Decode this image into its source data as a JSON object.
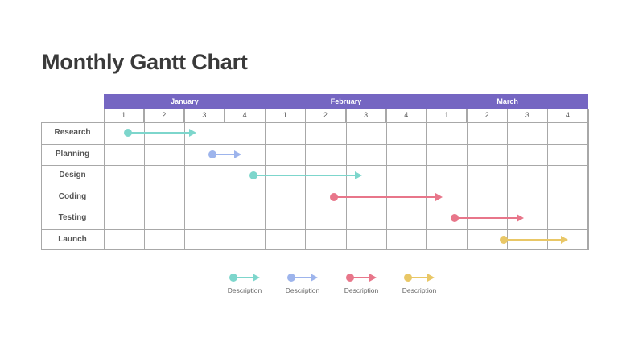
{
  "title": "Monthly Gantt Chart",
  "months": [
    "January",
    "February",
    "March"
  ],
  "weeks": [
    "1",
    "2",
    "3",
    "4",
    "1",
    "2",
    "3",
    "4",
    "1",
    "2",
    "3",
    "4"
  ],
  "tasks": [
    "Research",
    "Planning",
    "Design",
    "Coding",
    "Testing",
    "Launch"
  ],
  "colors": {
    "header": "#7566c2",
    "teal": "#7dd6cc",
    "blue": "#9db4ec",
    "red": "#e8768a",
    "yellow": "#e9c766"
  },
  "legend": [
    {
      "label": "Description",
      "color": "#7dd6cc"
    },
    {
      "label": "Description",
      "color": "#9db4ec"
    },
    {
      "label": "Description",
      "color": "#e8768a"
    },
    {
      "label": "Description",
      "color": "#e9c766"
    }
  ],
  "chart_data": {
    "type": "gantt",
    "title": "Monthly Gantt Chart",
    "categories": [
      "Research",
      "Planning",
      "Design",
      "Coding",
      "Testing",
      "Launch"
    ],
    "x_ticks": [
      "Jan W1",
      "Jan W2",
      "Jan W3",
      "Jan W4",
      "Feb W1",
      "Feb W2",
      "Feb W3",
      "Feb W4",
      "Mar W1",
      "Mar W2",
      "Mar W3",
      "Mar W4"
    ],
    "x_unit": "week index (0 = start of January week 1, 12 = end of March week 4)",
    "series": [
      {
        "name": "Research",
        "start": 0.6,
        "end": 2.3,
        "color": "#7dd6cc"
      },
      {
        "name": "Planning",
        "start": 2.7,
        "end": 3.4,
        "color": "#9db4ec"
      },
      {
        "name": "Design",
        "start": 3.7,
        "end": 6.4,
        "color": "#7dd6cc"
      },
      {
        "name": "Coding",
        "start": 5.7,
        "end": 8.4,
        "color": "#e8768a"
      },
      {
        "name": "Testing",
        "start": 8.7,
        "end": 10.4,
        "color": "#e8768a"
      },
      {
        "name": "Launch",
        "start": 9.9,
        "end": 11.5,
        "color": "#e9c766"
      }
    ],
    "legend": [
      "Description",
      "Description",
      "Description",
      "Description"
    ],
    "grid": true
  }
}
